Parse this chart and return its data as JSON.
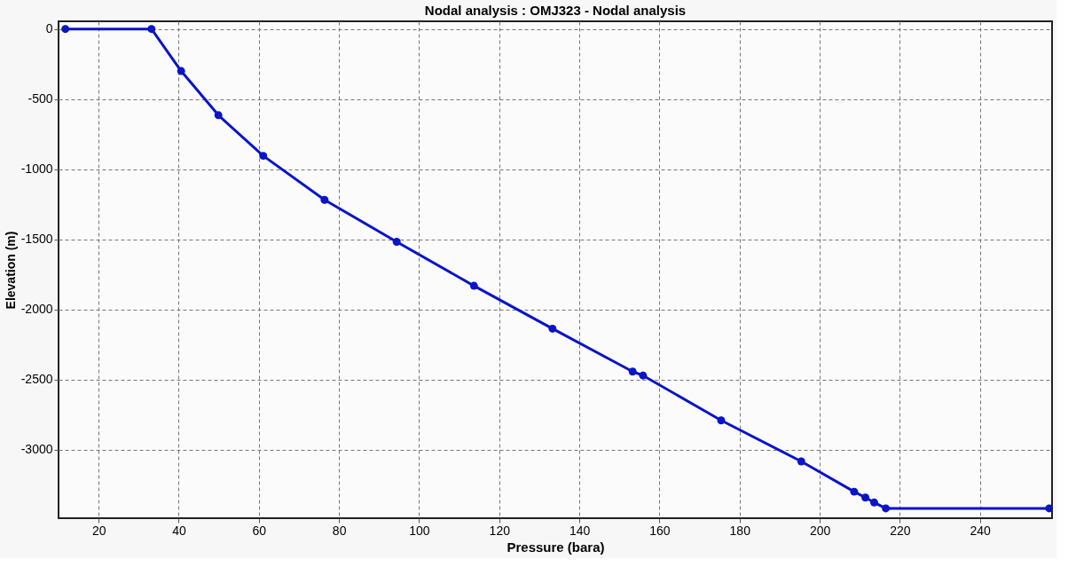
{
  "chart_data": {
    "type": "line",
    "title": "Nodal analysis : OMJ323 - Nodal analysis",
    "xlabel": "Pressure (bara)",
    "ylabel": "Elevation (m)",
    "x": [
      11.7,
      33.2,
      40.6,
      49.9,
      61.1,
      76.4,
      94.4,
      113.7,
      133.3,
      153.3,
      155.9,
      175.4,
      195.4,
      208.6,
      211.4,
      213.6,
      216.5,
      257.3
    ],
    "series": [
      {
        "color": "#0a14c8",
        "values": [
          0,
          0,
          -300,
          -615,
          -905,
          -1219,
          -1518,
          -1832,
          -2138,
          -2444,
          -2472,
          -2792,
          -3085,
          -3301,
          -3343,
          -3378,
          -3420,
          -3420
        ]
      }
    ],
    "xlim": [
      10,
      258
    ],
    "xticks": [
      20,
      40,
      60,
      80,
      100,
      120,
      140,
      160,
      180,
      200,
      220,
      240
    ],
    "ylim": [
      -3490,
      55
    ],
    "yticks": [
      0,
      -500,
      -1000,
      -1500,
      -2000,
      -2500,
      -3000
    ],
    "grid": true,
    "marker": "circle",
    "line_style": "solid",
    "legend": false
  }
}
